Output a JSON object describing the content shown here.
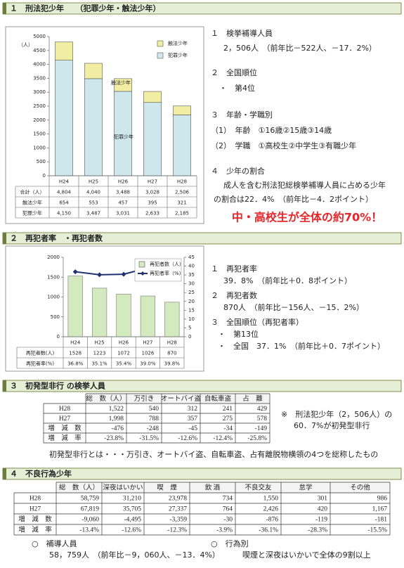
{
  "sections": [
    {
      "heading": "１　刑法犯少年　　（犯罪少年・触法少年）",
      "lines": [
        "１　検挙補導人員",
        "2，506人　（前年比－522人、－17．2%）",
        "２　全国順位",
        "・　第4位",
        "３　年齢・学職別",
        "（1）　年齢　①16歳②15歳③14歳",
        "（2）　学職　①高校生②中学生③有職少年",
        "４　少年の割合",
        "成人を含む刑法犯総検挙補導人員に占める少年",
        "の割合は22．4%　（前年比－4．2ポイント）"
      ],
      "highlight": "中・高校生が全体の約70%！"
    },
    {
      "heading": "２　再犯者率　・再犯者数",
      "lines": [
        "１　再犯者率",
        "39．8%　（前年比＋0．8ポイント）",
        "２　再犯者数",
        "870人　（前年比－156人、－15．2%）",
        "３　全国順位（再犯者率）",
        "・　第13位",
        "・　全国　37．1%　（前年比＋0．7ポイント）"
      ]
    },
    {
      "heading": "３　初発型非行 の検挙人員",
      "lines": [
        "※　刑法犯少年（2，506人）の",
        "60．7%が初発型非行",
        "初発型非行とは・・・万引き、オートバイ盗、自転車盗、占有離脱物横領の4つを総称したもの"
      ],
      "table": {
        "header": [
          "総　数（人）",
          "万引き",
          "オートバイ盗",
          "自転車盗",
          "占　離"
        ],
        "rows": [
          {
            "label": "H28",
            "cells": [
              "1,522",
              "540",
              "312",
              "241",
              "429"
            ]
          },
          {
            "label": "H27",
            "cells": [
              "1,998",
              "788",
              "357",
              "275",
              "578"
            ]
          },
          {
            "label": "増　減　数",
            "cells": [
              "-476",
              "-248",
              "-45",
              "-34",
              "-149"
            ]
          },
          {
            "label": "増　減　率",
            "cells": [
              "-23.8%",
              "-31.5%",
              "-12.6%",
              "-12.4%",
              "-25.8%"
            ]
          }
        ]
      }
    },
    {
      "heading": "４　不良行為少年",
      "lines": [
        "○　補導人員",
        "58，759人　（前年比－9，060人、－13．4%）",
        "○　行為別",
        "喫煙と深夜はいかいで全体の9割以上"
      ],
      "table": {
        "header": [
          "総　数（人）",
          "深夜はいかい",
          "喫　煙",
          "飲 酒",
          "不良交友",
          "怠学",
          "その他"
        ],
        "rows": [
          {
            "label": "H28",
            "cells": [
              "58,759",
              "31,210",
              "23,978",
              "734",
              "1,550",
              "301",
              "986"
            ]
          },
          {
            "label": "H27",
            "cells": [
              "67,819",
              "35,705",
              "27,337",
              "764",
              "2,426",
              "420",
              "1,167"
            ]
          },
          {
            "label": "増　減　数",
            "cells": [
              "-9,060",
              "-4,495",
              "-3,359",
              "-30",
              "-876",
              "-119",
              "-181"
            ]
          },
          {
            "label": "増　減　率",
            "cells": [
              "-13.4%",
              "-12.6%",
              "-12.3%",
              "-3.9%",
              "-36.1%",
              "-28.3%",
              "-15.5%"
            ]
          }
        ]
      }
    }
  ],
  "chart_data": [
    {
      "type": "stacked_bar",
      "y_label": "（人）",
      "categories": [
        "H24",
        "H25",
        "H26",
        "H27",
        "H28"
      ],
      "series": [
        {
          "name": "犯罪少年",
          "color": "#cde7ec",
          "values": [
            4150,
            3487,
            3031,
            2633,
            2185
          ]
        },
        {
          "name": "触法少年",
          "color": "#f1eea4",
          "values": [
            654,
            553,
            457,
            395,
            321
          ]
        }
      ],
      "annotations": [
        "触法少年",
        "犯罪少年"
      ],
      "ylim": [
        0,
        5000
      ],
      "yticks": [
        0,
        500,
        1000,
        1500,
        2000,
        2500,
        3000,
        3500,
        4000,
        4500,
        5000
      ],
      "legend": "upper right",
      "table": {
        "rows": [
          {
            "label": "合計（人）",
            "cells": [
              "4,804",
              "4,040",
              "3,488",
              "3,028",
              "2,506"
            ]
          },
          {
            "label": "触法少年",
            "cells": [
              "654",
              "553",
              "457",
              "395",
              "321"
            ]
          },
          {
            "label": "犯罪少年",
            "cells": [
              "4,150",
              "3,487",
              "3,031",
              "2,633",
              "2,185"
            ]
          }
        ]
      }
    },
    {
      "type": "bar_line",
      "categories": [
        "H24",
        "H25",
        "H26",
        "H27",
        "H28"
      ],
      "series": [
        {
          "name": "再犯者数（人）",
          "color": "#d3eabf",
          "values": [
            1528,
            1223,
            1072,
            1026,
            870
          ]
        },
        {
          "name": "再犯者率（%）",
          "color": "#1f3370",
          "axis": "y2",
          "values": [
            36.8,
            35.1,
            35.4,
            39.0,
            39.8
          ]
        }
      ],
      "ylim": [
        0,
        2000
      ],
      "yticks": [
        0,
        500,
        1000,
        1500,
        2000
      ],
      "y2lim": [
        0,
        45
      ],
      "y2ticks": [
        0,
        5,
        10,
        15,
        20,
        25,
        30,
        35,
        40,
        45
      ],
      "legend": "upper right",
      "table": {
        "rows": [
          {
            "label": "再犯者数(人)",
            "cells": [
              "1528",
              "1223",
              "1072",
              "1026",
              "870"
            ]
          },
          {
            "label": "再犯者率(%)",
            "cells": [
              "36.8%",
              "35.1%",
              "35.4%",
              "39.0%",
              "39.8%"
            ]
          }
        ]
      }
    }
  ]
}
